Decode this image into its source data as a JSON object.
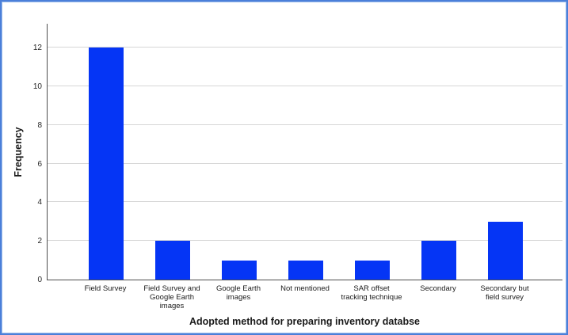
{
  "chart_data": {
    "type": "bar",
    "title": "",
    "categories": [
      "Field Survey",
      "Field Survey and\nGoogle Earth\nimages",
      "Google Earth\nimages",
      "Not mentioned",
      "SAR offset\ntracking technique",
      "Secondary",
      "Secondary but\nfield survey"
    ],
    "values": [
      12,
      2,
      1,
      1,
      1,
      2,
      3
    ],
    "xlabel": "Adopted method for preparing inventory databse",
    "ylabel": "Frequency",
    "yticks": [
      0,
      2,
      4,
      6,
      8,
      10,
      12
    ],
    "ylim": [
      0,
      13.27
    ],
    "grid": "horizontal-at-even-values",
    "legend": "none",
    "colors": {
      "bar": "#0535f5",
      "frame_border": "#4b7fd9",
      "frame_border_inner": "#9dbcec",
      "gridline": "#d6d6d6",
      "axis": "#4d4d4d",
      "text": "#1a1a1a",
      "background": "#ffffff"
    }
  }
}
